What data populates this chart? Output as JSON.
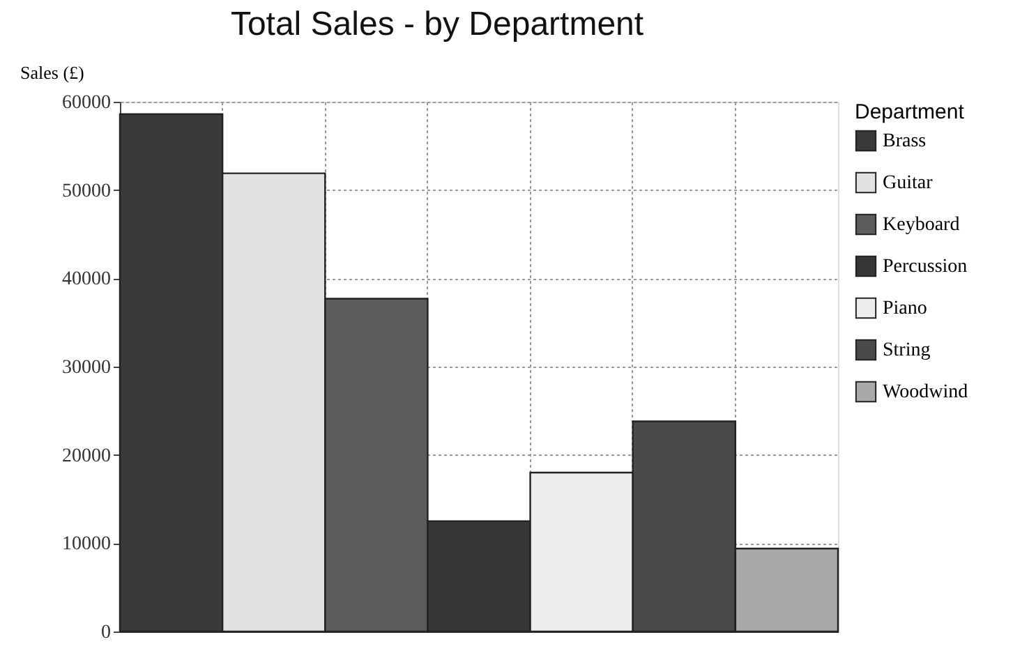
{
  "chart_data": {
    "type": "bar",
    "title": "Total Sales - by Department",
    "ylabel": "Sales (£)",
    "legend_title": "Department",
    "categories": [
      null,
      null,
      null,
      null,
      null,
      null,
      null
    ],
    "series": [
      {
        "name": "Brass",
        "color": "#3a3a3a",
        "values": [
          58600,
          null,
          null,
          null,
          null,
          null,
          null
        ]
      },
      {
        "name": "Guitar",
        "color": "#e2e2e2",
        "values": [
          null,
          51900,
          null,
          null,
          null,
          null,
          null
        ]
      },
      {
        "name": "Keyboard",
        "color": "#5c5c5c",
        "values": [
          null,
          null,
          37700,
          null,
          null,
          null,
          null
        ]
      },
      {
        "name": "Percussion",
        "color": "#363636",
        "values": [
          null,
          null,
          null,
          12500,
          null,
          null,
          null
        ]
      },
      {
        "name": "Piano",
        "color": "#ececec",
        "values": [
          null,
          null,
          null,
          null,
          18000,
          null,
          null
        ]
      },
      {
        "name": "String",
        "color": "#4a4a4a",
        "values": [
          null,
          null,
          null,
          null,
          null,
          23800,
          null
        ]
      },
      {
        "name": "Woodwind",
        "color": "#a9a9a9",
        "values": [
          null,
          null,
          null,
          null,
          null,
          null,
          9400
        ]
      }
    ],
    "ylim": [
      0,
      60000
    ],
    "yticks": [
      0,
      10000,
      20000,
      30000,
      40000,
      50000,
      60000
    ],
    "grid": true,
    "legend": "right",
    "tick_labels": "y"
  }
}
